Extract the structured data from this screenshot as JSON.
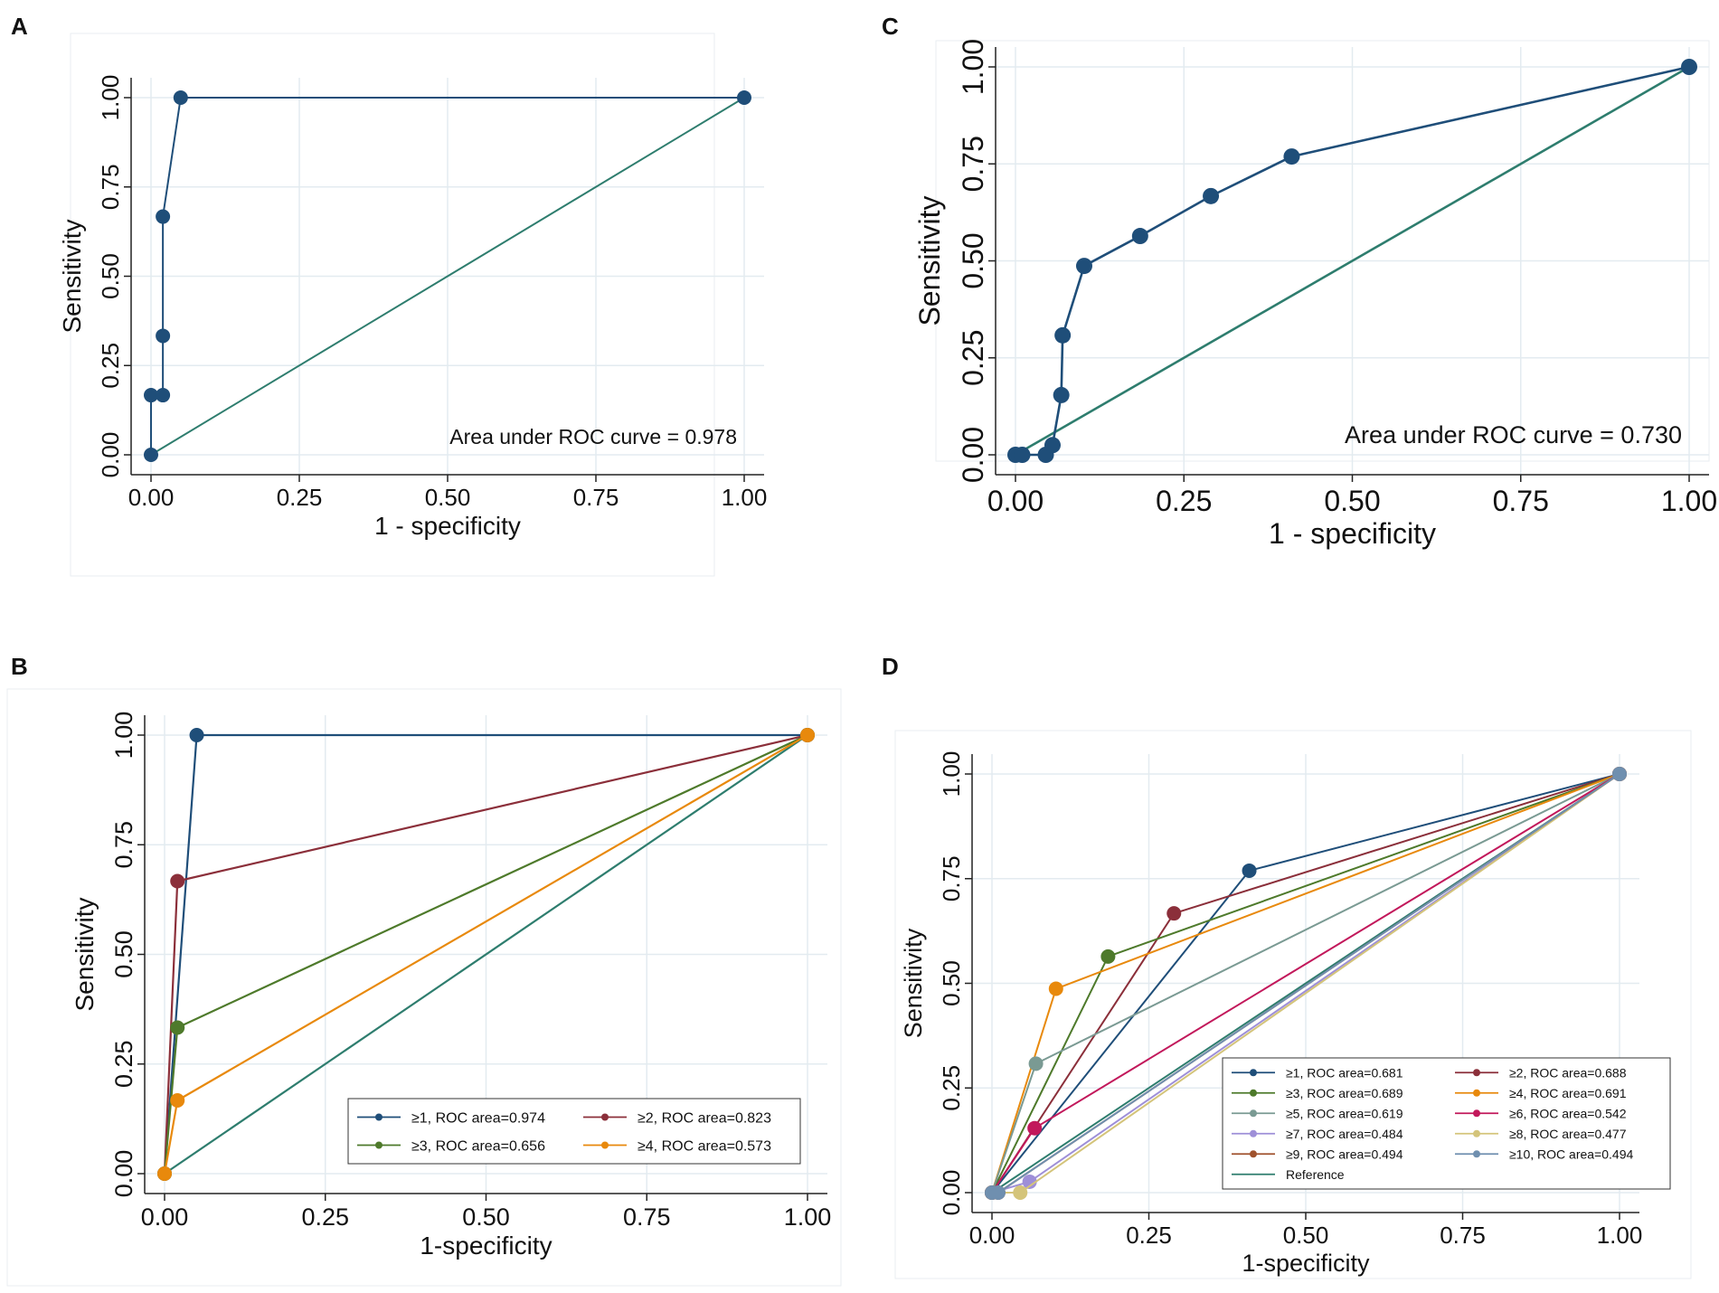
{
  "figure": {
    "width": 1901,
    "height": 1430
  },
  "panel_labels": [
    "A",
    "C",
    "B",
    "D"
  ],
  "chart_data": [
    {
      "panel": "A",
      "type": "line",
      "xlabel": "1 - specificity",
      "ylabel": "Sensitivity",
      "xlim": [
        0,
        1
      ],
      "ylim": [
        0,
        1
      ],
      "xticks": [
        "0.00",
        "0.25",
        "0.50",
        "0.75",
        "1.00"
      ],
      "yticks": [
        "0.00",
        "0.25",
        "0.50",
        "0.75",
        "1.00"
      ],
      "grid": true,
      "annotation": "Area under ROC curve = 0.978",
      "series": [
        {
          "name": "ROC",
          "color": "#1f4e79",
          "markers": true,
          "x": [
            0.0,
            0.0,
            0.02,
            0.02,
            0.02,
            0.05,
            1.0
          ],
          "y": [
            0.0,
            0.167,
            0.167,
            0.333,
            0.667,
            1.0,
            1.0
          ]
        },
        {
          "name": "Reference",
          "color": "#2e7d6e",
          "markers": false,
          "x": [
            0,
            1
          ],
          "y": [
            0,
            1
          ]
        }
      ]
    },
    {
      "panel": "C",
      "type": "line",
      "xlabel": "1 - specificity",
      "ylabel": "Sensitivity",
      "xlim": [
        0,
        1
      ],
      "ylim": [
        0,
        1
      ],
      "xticks": [
        "0.00",
        "0.25",
        "0.50",
        "0.75",
        "1.00"
      ],
      "yticks": [
        "0.00",
        "0.25",
        "0.50",
        "0.75",
        "1.00"
      ],
      "grid": true,
      "annotation": "Area under ROC curve = 0.730",
      "series": [
        {
          "name": "ROC",
          "color": "#1f4e79",
          "markers": true,
          "x": [
            0.0,
            0.01,
            0.045,
            0.055,
            0.068,
            0.07,
            0.102,
            0.185,
            0.29,
            0.41,
            1.0
          ],
          "y": [
            0.0,
            0.0,
            0.0,
            0.025,
            0.154,
            0.308,
            0.487,
            0.564,
            0.667,
            0.769,
            1.0
          ]
        },
        {
          "name": "Reference",
          "color": "#2e7d6e",
          "markers": false,
          "x": [
            0,
            1
          ],
          "y": [
            0,
            1
          ]
        }
      ]
    },
    {
      "panel": "B",
      "type": "line",
      "xlabel": "1-specificity",
      "ylabel": "Sensitivity",
      "xlim": [
        0,
        1
      ],
      "ylim": [
        0,
        1
      ],
      "xticks": [
        "0.00",
        "0.25",
        "0.50",
        "0.75",
        "1.00"
      ],
      "yticks": [
        "0.00",
        "0.25",
        "0.50",
        "0.75",
        "1.00"
      ],
      "grid": true,
      "legend_position": "bottom-right",
      "legend_columns": 2,
      "series": [
        {
          "name": "≥1, ROC area=0.974",
          "color": "#1f4e79",
          "markers": true,
          "x": [
            0,
            0.05,
            1
          ],
          "y": [
            0,
            1.0,
            1
          ]
        },
        {
          "name": "≥2, ROC area=0.823",
          "color": "#8b2f3a",
          "markers": true,
          "x": [
            0,
            0.02,
            1
          ],
          "y": [
            0,
            0.667,
            1
          ]
        },
        {
          "name": "≥3, ROC area=0.656",
          "color": "#4e7a2b",
          "markers": true,
          "x": [
            0,
            0.02,
            1
          ],
          "y": [
            0,
            0.333,
            1
          ]
        },
        {
          "name": "≥4, ROC area=0.573",
          "color": "#e8890c",
          "markers": true,
          "x": [
            0,
            0.02,
            1
          ],
          "y": [
            0,
            0.167,
            1
          ]
        },
        {
          "name": "Reference",
          "color": "#2e7d6e",
          "markers": false,
          "in_legend": false,
          "x": [
            0,
            1
          ],
          "y": [
            0,
            1
          ]
        }
      ]
    },
    {
      "panel": "D",
      "type": "line",
      "xlabel": "1-specificity",
      "ylabel": "Sensitivity",
      "xlim": [
        0,
        1
      ],
      "ylim": [
        0,
        1
      ],
      "xticks": [
        "0.00",
        "0.25",
        "0.50",
        "0.75",
        "1.00"
      ],
      "yticks": [
        "0.00",
        "0.25",
        "0.50",
        "0.75",
        "1.00"
      ],
      "grid": true,
      "legend_position": "bottom-right",
      "legend_columns": 2,
      "series": [
        {
          "name": "≥1, ROC area=0.681",
          "color": "#1f4e79",
          "markers": true,
          "x": [
            0,
            0.41,
            1
          ],
          "y": [
            0,
            0.769,
            1
          ]
        },
        {
          "name": "≥2, ROC area=0.688",
          "color": "#8b2f3a",
          "markers": true,
          "x": [
            0,
            0.29,
            1
          ],
          "y": [
            0,
            0.667,
            1
          ]
        },
        {
          "name": "≥3, ROC area=0.689",
          "color": "#4e7a2b",
          "markers": true,
          "x": [
            0,
            0.185,
            1
          ],
          "y": [
            0,
            0.564,
            1
          ]
        },
        {
          "name": "≥4, ROC area=0.691",
          "color": "#e8890c",
          "markers": true,
          "x": [
            0,
            0.102,
            1
          ],
          "y": [
            0,
            0.487,
            1
          ]
        },
        {
          "name": "≥5, ROC area=0.619",
          "color": "#7a9a93",
          "markers": true,
          "x": [
            0,
            0.07,
            1
          ],
          "y": [
            0,
            0.308,
            1
          ]
        },
        {
          "name": "≥6, ROC area=0.542",
          "color": "#c2185b",
          "markers": true,
          "x": [
            0,
            0.068,
            1
          ],
          "y": [
            0,
            0.154,
            1
          ]
        },
        {
          "name": "≥7, ROC area=0.484",
          "color": "#9e8fd8",
          "markers": true,
          "x": [
            0,
            0.06,
            1
          ],
          "y": [
            0,
            0.026,
            1
          ]
        },
        {
          "name": "≥8, ROC area=0.477",
          "color": "#d4c47a",
          "markers": true,
          "x": [
            0,
            0.045,
            1
          ],
          "y": [
            0,
            0.0,
            1
          ]
        },
        {
          "name": "≥9, ROC area=0.494",
          "color": "#a0522d",
          "markers": true,
          "x": [
            0,
            0.01,
            1
          ],
          "y": [
            0,
            0.0,
            1
          ]
        },
        {
          "name": "≥10, ROC area=0.494",
          "color": "#6f8faf",
          "markers": true,
          "x": [
            0,
            0.01,
            1
          ],
          "y": [
            0,
            0.0,
            1
          ]
        },
        {
          "name": "Reference",
          "color": "#2e7d6e",
          "markers": false,
          "x": [
            0,
            1
          ],
          "y": [
            0,
            1
          ]
        }
      ]
    }
  ]
}
